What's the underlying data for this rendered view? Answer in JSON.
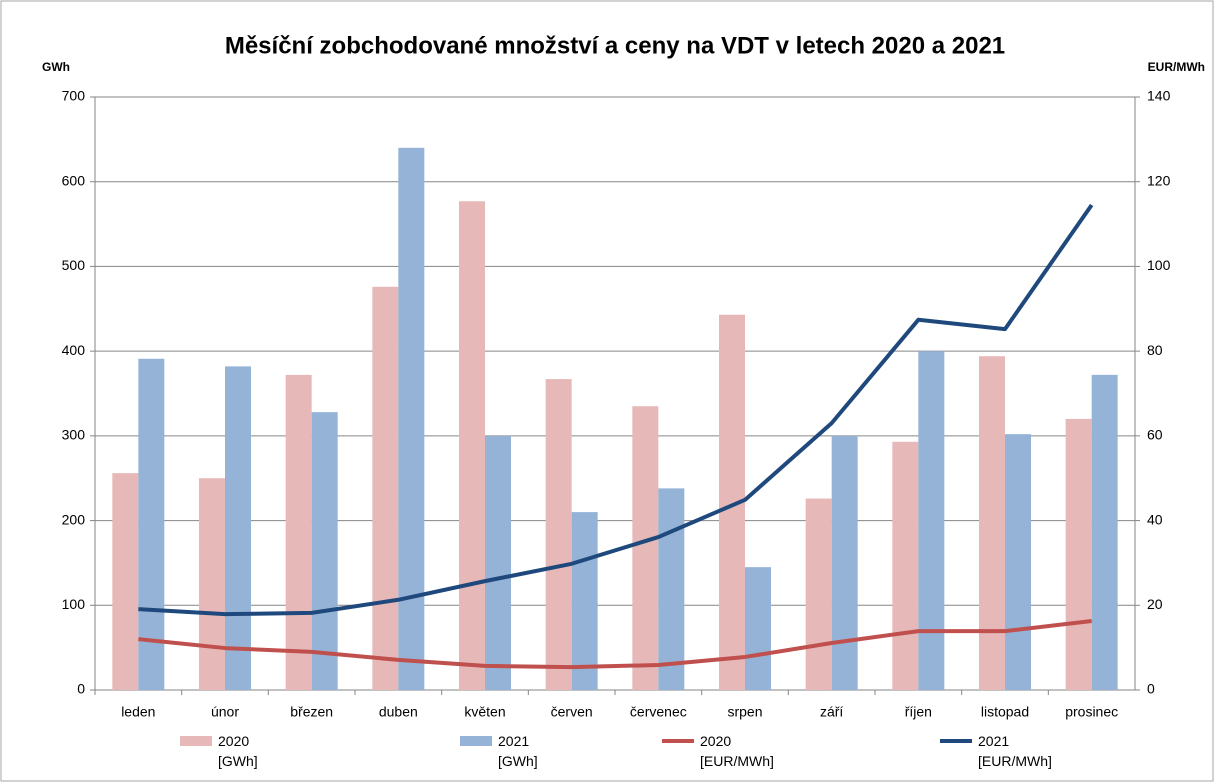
{
  "chart_data": {
    "type": "bar-line",
    "title": "Měsíční zobchodované množství a ceny na VDT v letech 2020 a 2021",
    "y_label": "GWh",
    "y2_label": "EUR/MWh",
    "categories": [
      "leden",
      "únor",
      "březen",
      "duben",
      "květen",
      "červen",
      "červenec",
      "srpen",
      "září",
      "říjen",
      "listopad",
      "prosinec"
    ],
    "series": [
      {
        "name": "2020 [GWh]",
        "type": "bar",
        "color": "#e6b9b8",
        "values": [
          256,
          250,
          372,
          476,
          577,
          367,
          335,
          443,
          226,
          293,
          394,
          320
        ]
      },
      {
        "name": "2021 [GWh]",
        "type": "bar",
        "color": "#95b3d7",
        "values": [
          391,
          382,
          328,
          640,
          300,
          210,
          238,
          145,
          300,
          400,
          302,
          372
        ]
      },
      {
        "name": "2020 [EUR/MWh]",
        "type": "line",
        "axis": "y2",
        "color": "#c0504d",
        "values": [
          12.0,
          9.9,
          9.0,
          7.1,
          5.7,
          5.4,
          5.9,
          7.8,
          11.1,
          13.9,
          13.9,
          16.3
        ]
      },
      {
        "name": "2021 [EUR/MWh]",
        "type": "line",
        "axis": "y2",
        "color": "#1f497d",
        "values": [
          19.1,
          17.9,
          18.2,
          21.3,
          25.7,
          29.8,
          36.1,
          44.9,
          63.0,
          87.4,
          85.2,
          114.5
        ]
      }
    ],
    "ylim": [
      0,
      700
    ],
    "yticks": [
      0,
      100,
      200,
      300,
      400,
      500,
      600,
      700
    ],
    "y2lim": [
      0,
      140
    ],
    "y2ticks": [
      0,
      20,
      40,
      60,
      80,
      100,
      120,
      140
    ],
    "grid": true,
    "legend": "bottom"
  }
}
